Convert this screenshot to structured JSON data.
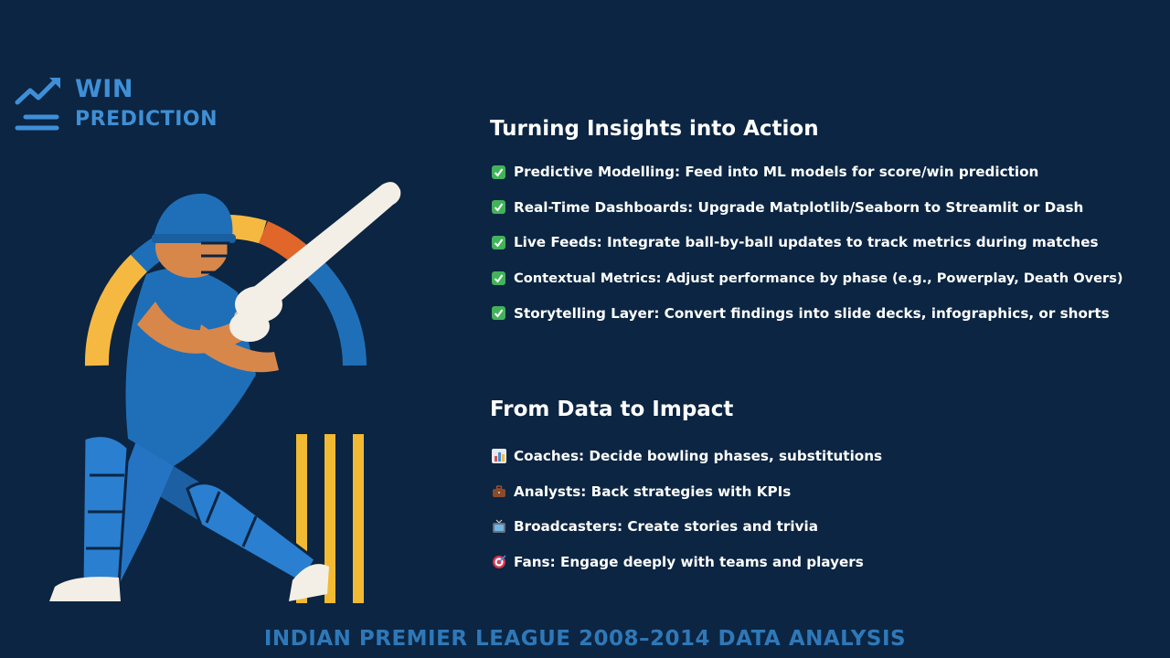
{
  "logo": {
    "line1": "WIN",
    "line2": "PREDICTION"
  },
  "section1": {
    "title": "Turning Insights into Action",
    "items": [
      {
        "icon": "checkmark-icon",
        "text": "Predictive Modelling: Feed into ML models for score/win prediction"
      },
      {
        "icon": "checkmark-icon",
        "text": "Real-Time Dashboards: Upgrade Matplotlib/Seaborn to Streamlit or Dash"
      },
      {
        "icon": "checkmark-icon",
        "text": "Live Feeds: Integrate ball-by-ball updates to track metrics during matches"
      },
      {
        "icon": "checkmark-icon",
        "text": "Contextual Metrics: Adjust performance by phase (e.g., Powerplay, Death Overs)"
      },
      {
        "icon": "checkmark-icon",
        "text": "Storytelling Layer: Convert findings into slide decks, infographics, or shorts"
      }
    ]
  },
  "section2": {
    "title": "From Data to Impact",
    "items": [
      {
        "icon": "bar-chart-icon",
        "text": "Coaches: Decide bowling phases, substitutions"
      },
      {
        "icon": "briefcase-icon",
        "text": "Analysts: Back strategies with KPIs"
      },
      {
        "icon": "television-icon",
        "text": "Broadcasters: Create stories and trivia"
      },
      {
        "icon": "target-icon",
        "text": "Fans: Engage deeply with teams and players"
      }
    ]
  },
  "footer": {
    "text": "INDIAN PREMIER LEAGUE 2008–2014 DATA ANALYSIS"
  },
  "colors": {
    "background": "#0b2542",
    "accent_blue": "#3f8fd6",
    "check_green": "#43b25a",
    "gauge_yellow": "#f5b942",
    "gauge_orange": "#e0662a",
    "stumps_yellow": "#f2b933"
  }
}
